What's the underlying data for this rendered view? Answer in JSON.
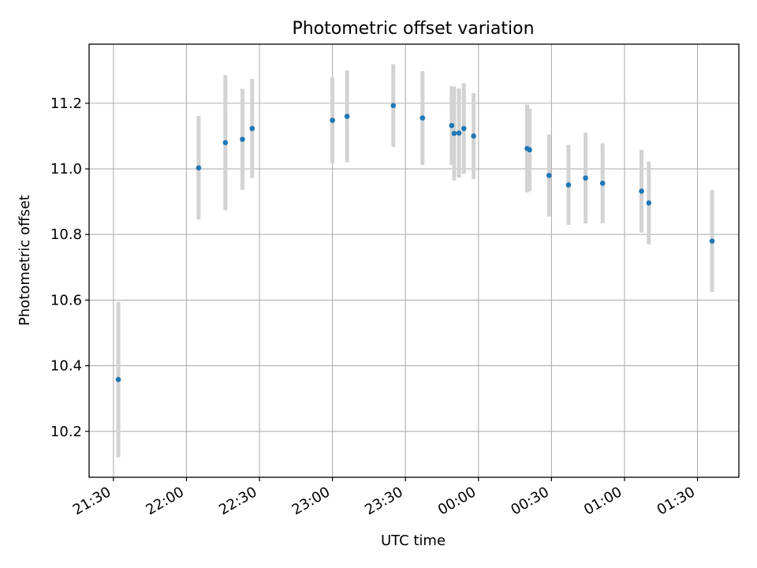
{
  "chart_data": {
    "type": "scatter",
    "title": "Photometric offset variation",
    "xlabel": "UTC time",
    "ylabel": "Photometric offset",
    "x_ticks": [
      "21:30",
      "22:00",
      "22:30",
      "23:00",
      "23:30",
      "00:00",
      "00:30",
      "01:00",
      "01:30"
    ],
    "y_ticks": [
      "10.2",
      "10.4",
      "10.6",
      "10.8",
      "11.0",
      "11.2"
    ],
    "ylim": [
      10.06,
      11.38
    ],
    "xlim": [
      "21:20",
      "01:47"
    ],
    "grid": true,
    "error_bar_color": "#d3d3d3",
    "point_color": "#1f77b4",
    "points": [
      {
        "x": "21:32",
        "y": 10.358,
        "yerr": 0.237
      },
      {
        "x": "22:05",
        "y": 11.003,
        "yerr": 0.158
      },
      {
        "x": "22:16",
        "y": 11.08,
        "yerr": 0.206
      },
      {
        "x": "22:23",
        "y": 11.09,
        "yerr": 0.154
      },
      {
        "x": "22:27",
        "y": 11.123,
        "yerr": 0.151
      },
      {
        "x": "23:00",
        "y": 11.148,
        "yerr": 0.131
      },
      {
        "x": "23:06",
        "y": 11.16,
        "yerr": 0.14
      },
      {
        "x": "23:25",
        "y": 11.193,
        "yerr": 0.126
      },
      {
        "x": "23:37",
        "y": 11.155,
        "yerr": 0.143
      },
      {
        "x": "23:49",
        "y": 11.132,
        "yerr": 0.12
      },
      {
        "x": "23:50",
        "y": 11.108,
        "yerr": 0.143
      },
      {
        "x": "23:52",
        "y": 11.109,
        "yerr": 0.136
      },
      {
        "x": "23:54",
        "y": 11.123,
        "yerr": 0.138
      },
      {
        "x": "23:58",
        "y": 11.1,
        "yerr": 0.131
      },
      {
        "x": "00:20",
        "y": 11.062,
        "yerr": 0.134
      },
      {
        "x": "00:21",
        "y": 11.058,
        "yerr": 0.126
      },
      {
        "x": "00:29",
        "y": 10.98,
        "yerr": 0.125
      },
      {
        "x": "00:37",
        "y": 10.951,
        "yerr": 0.122
      },
      {
        "x": "00:44",
        "y": 10.972,
        "yerr": 0.138
      },
      {
        "x": "00:51",
        "y": 10.956,
        "yerr": 0.122
      },
      {
        "x": "01:07",
        "y": 10.932,
        "yerr": 0.126
      },
      {
        "x": "01:10",
        "y": 10.896,
        "yerr": 0.126
      },
      {
        "x": "01:36",
        "y": 10.78,
        "yerr": 0.155
      }
    ]
  }
}
